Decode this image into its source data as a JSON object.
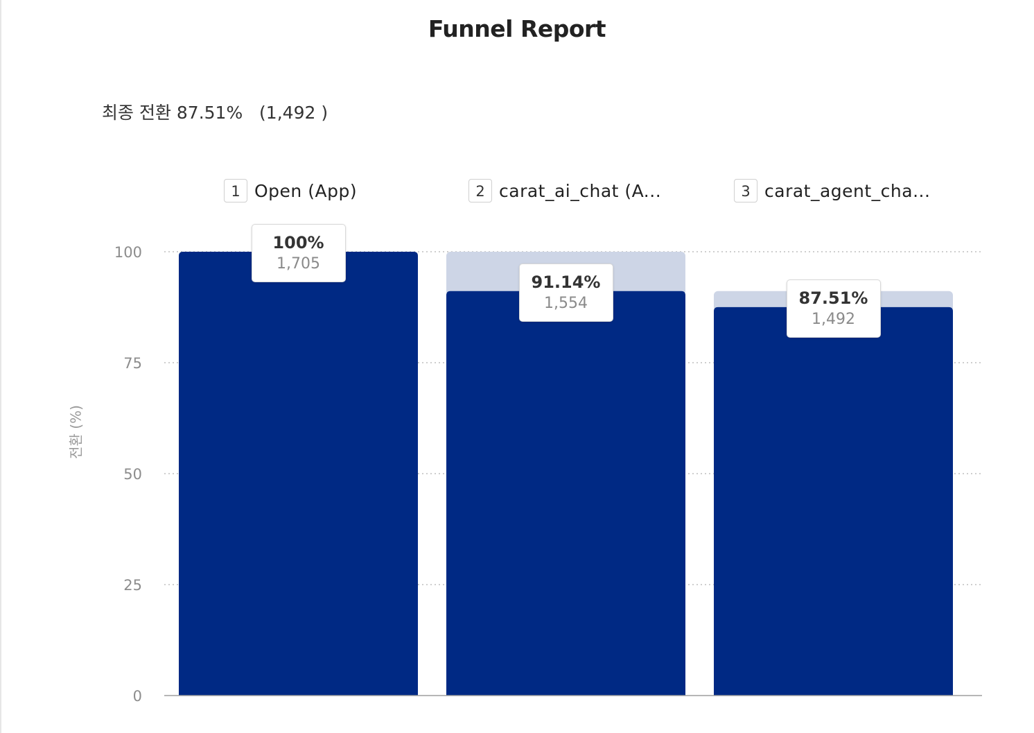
{
  "title": "Funnel Report",
  "summary": {
    "text": "최종 전환 87.51%   (1,492 )"
  },
  "colors": {
    "bar": "#002984",
    "dropoff": "#cdd5e6",
    "grid": "#bdbdbd",
    "axis": "#9e9e9e"
  },
  "chart_data": {
    "type": "bar",
    "title": "Funnel Report",
    "ylabel": "전환 (%)",
    "ylim": [
      0,
      100
    ],
    "yticks": [
      "100",
      "75",
      "50",
      "25",
      "0"
    ],
    "ytick_values": [
      100,
      75,
      50,
      25,
      0
    ],
    "grid": true,
    "steps": [
      {
        "num": "1",
        "label": "Open (App)",
        "value": 100,
        "pct": "100%",
        "count": "1,705",
        "prev": 100
      },
      {
        "num": "2",
        "label": "carat_ai_chat (A...",
        "value": 91.14,
        "pct": "91.14%",
        "count": "1,554",
        "prev": 100
      },
      {
        "num": "3",
        "label": "carat_agent_cha...",
        "value": 87.51,
        "pct": "87.51%",
        "count": "1,492",
        "prev": 91.14
      }
    ]
  }
}
